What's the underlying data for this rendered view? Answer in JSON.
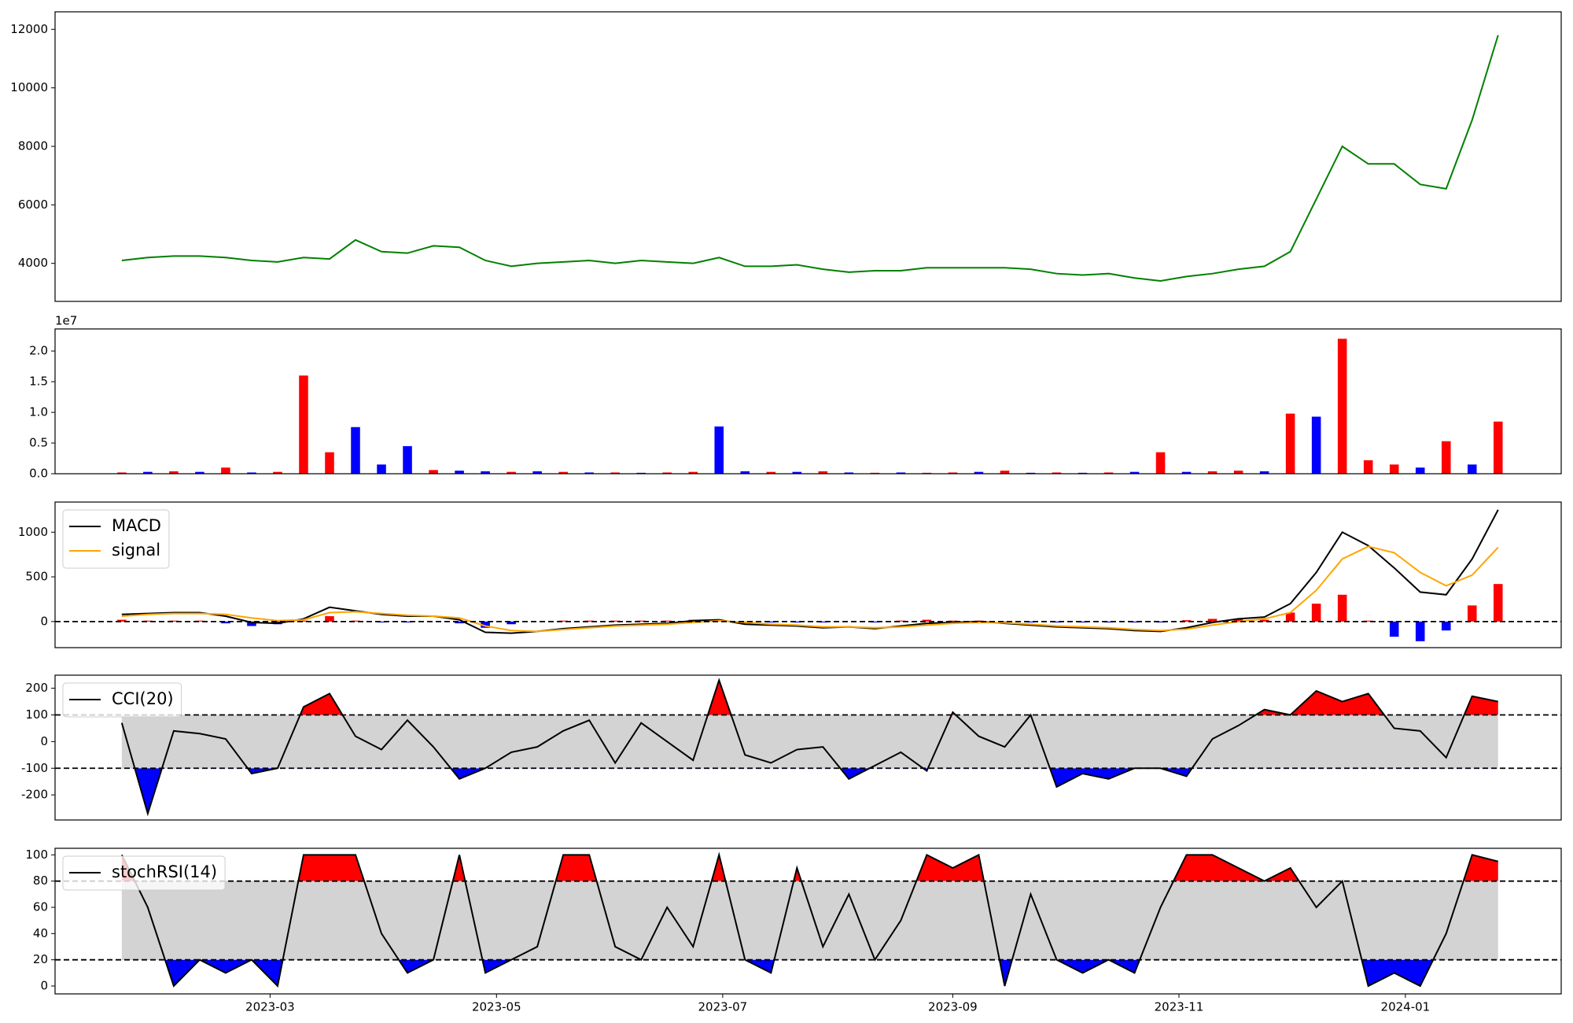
{
  "chart_data": [
    {
      "type": "line",
      "xlim": [
        -2.57,
        55.43
      ],
      "ylim": [
        2700,
        12600
      ],
      "yticks": [
        4000,
        6000,
        8000,
        10000,
        12000
      ],
      "categories": [
        null,
        null,
        null,
        null,
        null,
        null,
        null,
        null,
        null,
        null,
        null,
        null,
        null,
        null,
        null,
        null,
        null,
        null,
        null,
        null,
        null,
        null,
        null,
        null,
        null,
        null,
        null,
        null,
        null,
        null,
        null,
        null,
        null,
        null,
        null,
        null,
        null,
        null,
        null,
        null,
        null,
        null,
        null,
        null,
        null,
        null,
        null,
        null,
        null,
        null,
        null,
        null,
        null,
        null
      ],
      "series": [
        {
          "color": "#008000",
          "values": [
            4100,
            4200,
            4250,
            4250,
            4200,
            4100,
            4050,
            4200,
            4150,
            4800,
            4400,
            4350,
            4600,
            4550,
            4100,
            3900,
            4000,
            4050,
            4100,
            4000,
            4100,
            4050,
            4000,
            4200,
            3900,
            3900,
            3950,
            3800,
            3700,
            3750,
            3750,
            3850,
            3850,
            3850,
            3850,
            3800,
            3650,
            3600,
            3650,
            3500,
            3400,
            3550,
            3650,
            3800,
            3900,
            4400,
            6200,
            8000,
            7400,
            7400,
            6700,
            6550,
            8900,
            11800
          ]
        }
      ]
    },
    {
      "type": "bar",
      "xlim": [
        -2.57,
        55.43
      ],
      "ylim": [
        0,
        23600000
      ],
      "offset_label": "1e7",
      "yticks": [
        {
          "value": 0,
          "label": "0.0"
        },
        {
          "value": 5000000,
          "label": "0.5"
        },
        {
          "value": 10000000,
          "label": "1.0"
        },
        {
          "value": 15000000,
          "label": "1.5"
        },
        {
          "value": 20000000,
          "label": "2.0"
        }
      ],
      "categories": [
        null,
        null,
        null,
        null,
        null,
        null,
        null,
        null,
        null,
        null,
        null,
        null,
        null,
        null,
        null,
        null,
        null,
        null,
        null,
        null,
        null,
        null,
        null,
        null,
        null,
        null,
        null,
        null,
        null,
        null,
        null,
        null,
        null,
        null,
        null,
        null,
        null,
        null,
        null,
        null,
        null,
        null,
        null,
        null,
        null,
        null,
        null,
        null,
        null,
        null,
        null,
        null,
        null,
        null
      ],
      "series": [
        {
          "kind": "bar",
          "values": [
            200000,
            300000,
            400000,
            300000,
            1000000,
            200000,
            300000,
            16000000,
            3500000,
            7600000,
            1500000,
            4500000,
            600000,
            500000,
            400000,
            300000,
            400000,
            300000,
            200000,
            200000,
            150000,
            200000,
            300000,
            7700000,
            400000,
            300000,
            300000,
            400000,
            200000,
            150000,
            200000,
            150000,
            200000,
            300000,
            500000,
            150000,
            200000,
            150000,
            200000,
            300000,
            3500000,
            300000,
            400000,
            500000,
            400000,
            9800000,
            9300000,
            22000000,
            2200000,
            1500000,
            1000000,
            5300000,
            1500000,
            8500000
          ],
          "colors": [
            "red",
            "blue",
            "red",
            "blue",
            "red",
            "blue",
            "red",
            "red",
            "red",
            "blue",
            "blue",
            "blue",
            "red",
            "blue",
            "blue",
            "red",
            "blue",
            "red",
            "blue",
            "red",
            "blue",
            "red",
            "red",
            "blue",
            "blue",
            "red",
            "blue",
            "red",
            "blue",
            "red",
            "blue",
            "red",
            "red",
            "blue",
            "red",
            "blue",
            "red",
            "blue",
            "red",
            "blue",
            "red",
            "blue",
            "red",
            "red",
            "blue",
            "red",
            "blue",
            "red",
            "red",
            "red",
            "blue",
            "red",
            "blue",
            "red"
          ]
        }
      ]
    },
    {
      "type": "line",
      "xlim": [
        -2.57,
        55.43
      ],
      "ylim": [
        -292,
        1337
      ],
      "yticks": [
        0,
        500,
        1000
      ],
      "hlines": [
        0
      ],
      "legend": "upper left",
      "categories": [
        null,
        null,
        null,
        null,
        null,
        null,
        null,
        null,
        null,
        null,
        null,
        null,
        null,
        null,
        null,
        null,
        null,
        null,
        null,
        null,
        null,
        null,
        null,
        null,
        null,
        null,
        null,
        null,
        null,
        null,
        null,
        null,
        null,
        null,
        null,
        null,
        null,
        null,
        null,
        null,
        null,
        null,
        null,
        null,
        null,
        null,
        null,
        null,
        null,
        null,
        null,
        null,
        null,
        null
      ],
      "series": [
        {
          "kind": "bar",
          "color": "red",
          "negative_color": "blue",
          "values": [
            20,
            10,
            10,
            10,
            -20,
            -50,
            -30,
            10,
            60,
            10,
            -10,
            -10,
            0,
            -20,
            -70,
            -30,
            0,
            10,
            10,
            10,
            10,
            10,
            20,
            10,
            -20,
            -10,
            -10,
            -10,
            0,
            -10,
            10,
            20,
            10,
            10,
            -5,
            -10,
            -10,
            -10,
            -10,
            -10,
            -10,
            15,
            30,
            30,
            20,
            100,
            200,
            300,
            10,
            -170,
            -220,
            -100,
            180,
            420
          ]
        },
        {
          "name": "MACD",
          "color": "black",
          "values": [
            80,
            90,
            100,
            100,
            60,
            -10,
            -20,
            30,
            160,
            120,
            80,
            60,
            60,
            20,
            -120,
            -130,
            -110,
            -80,
            -60,
            -40,
            -30,
            -20,
            10,
            20,
            -30,
            -40,
            -50,
            -70,
            -60,
            -80,
            -50,
            -20,
            -10,
            0,
            -20,
            -40,
            -60,
            -70,
            -80,
            -100,
            -110,
            -70,
            -10,
            30,
            50,
            200,
            550,
            1000,
            850,
            600,
            330,
            300,
            700,
            1250
          ]
        },
        {
          "name": "signal",
          "color": "orange",
          "values": [
            60,
            80,
            90,
            90,
            80,
            40,
            10,
            20,
            100,
            110,
            90,
            70,
            60,
            40,
            -50,
            -100,
            -110,
            -90,
            -70,
            -50,
            -40,
            -30,
            -10,
            10,
            -10,
            -30,
            -40,
            -60,
            -60,
            -70,
            -60,
            -40,
            -20,
            -10,
            -15,
            -30,
            -50,
            -60,
            -70,
            -90,
            -100,
            -85,
            -40,
            0,
            30,
            100,
            350,
            700,
            840,
            770,
            550,
            400,
            520,
            830
          ]
        }
      ]
    },
    {
      "type": "line",
      "xlim": [
        -2.57,
        55.43
      ],
      "ylim": [
        -294,
        249
      ],
      "yticks": [
        -200,
        -100,
        0,
        100,
        200
      ],
      "band": {
        "upper": 100,
        "lower": -100
      },
      "legend": "upper left",
      "categories": [
        null,
        null,
        null,
        null,
        null,
        null,
        null,
        null,
        null,
        null,
        null,
        null,
        null,
        null,
        null,
        null,
        null,
        null,
        null,
        null,
        null,
        null,
        null,
        null,
        null,
        null,
        null,
        null,
        null,
        null,
        null,
        null,
        null,
        null,
        null,
        null,
        null,
        null,
        null,
        null,
        null,
        null,
        null,
        null,
        null,
        null,
        null,
        null,
        null,
        null,
        null,
        null,
        null,
        null
      ],
      "series": [
        {
          "name": "CCI(20)",
          "color": "black",
          "values": [
            70,
            -270,
            40,
            30,
            10,
            -120,
            -100,
            130,
            180,
            20,
            -30,
            80,
            -20,
            -140,
            -100,
            -40,
            -20,
            40,
            80,
            -80,
            70,
            0,
            -70,
            230,
            -50,
            -80,
            -30,
            -20,
            -140,
            -90,
            -40,
            -110,
            110,
            20,
            -20,
            100,
            -170,
            -120,
            -140,
            -100,
            -100,
            -130,
            10,
            60,
            120,
            100,
            190,
            150,
            180,
            50,
            40,
            -60,
            170,
            150
          ]
        }
      ]
    },
    {
      "type": "line",
      "xlim": [
        -2.57,
        55.43
      ],
      "ylim": [
        -6,
        105
      ],
      "yticks": [
        0,
        20,
        40,
        60,
        80,
        100
      ],
      "band": {
        "upper": 80,
        "lower": 20
      },
      "legend": "upper left",
      "xticks": [
        {
          "value": 5.71,
          "label": "2023-03"
        },
        {
          "value": 14.43,
          "label": "2023-05"
        },
        {
          "value": 23.14,
          "label": "2023-07"
        },
        {
          "value": 32,
          "label": "2023-09"
        },
        {
          "value": 40.71,
          "label": "2023-11"
        },
        {
          "value": 49.43,
          "label": "2024-01"
        }
      ],
      "categories": [
        null,
        null,
        null,
        null,
        null,
        null,
        null,
        null,
        null,
        null,
        null,
        null,
        null,
        null,
        null,
        null,
        null,
        null,
        null,
        null,
        null,
        null,
        null,
        null,
        null,
        null,
        null,
        null,
        null,
        null,
        null,
        null,
        null,
        null,
        null,
        null,
        null,
        null,
        null,
        null,
        null,
        null,
        null,
        null,
        null,
        null,
        null,
        null,
        null,
        null,
        null,
        null,
        null,
        null
      ],
      "series": [
        {
          "name": "stochRSI(14)",
          "color": "black",
          "values": [
            100,
            60,
            0,
            20,
            10,
            20,
            0,
            100,
            100,
            100,
            40,
            10,
            20,
            100,
            10,
            20,
            30,
            100,
            100,
            30,
            20,
            60,
            30,
            100,
            20,
            10,
            90,
            30,
            70,
            20,
            50,
            100,
            90,
            100,
            0,
            70,
            20,
            10,
            20,
            10,
            60,
            100,
            100,
            90,
            80,
            90,
            60,
            80,
            0,
            10,
            0,
            40,
            100,
            95
          ]
        }
      ]
    }
  ]
}
